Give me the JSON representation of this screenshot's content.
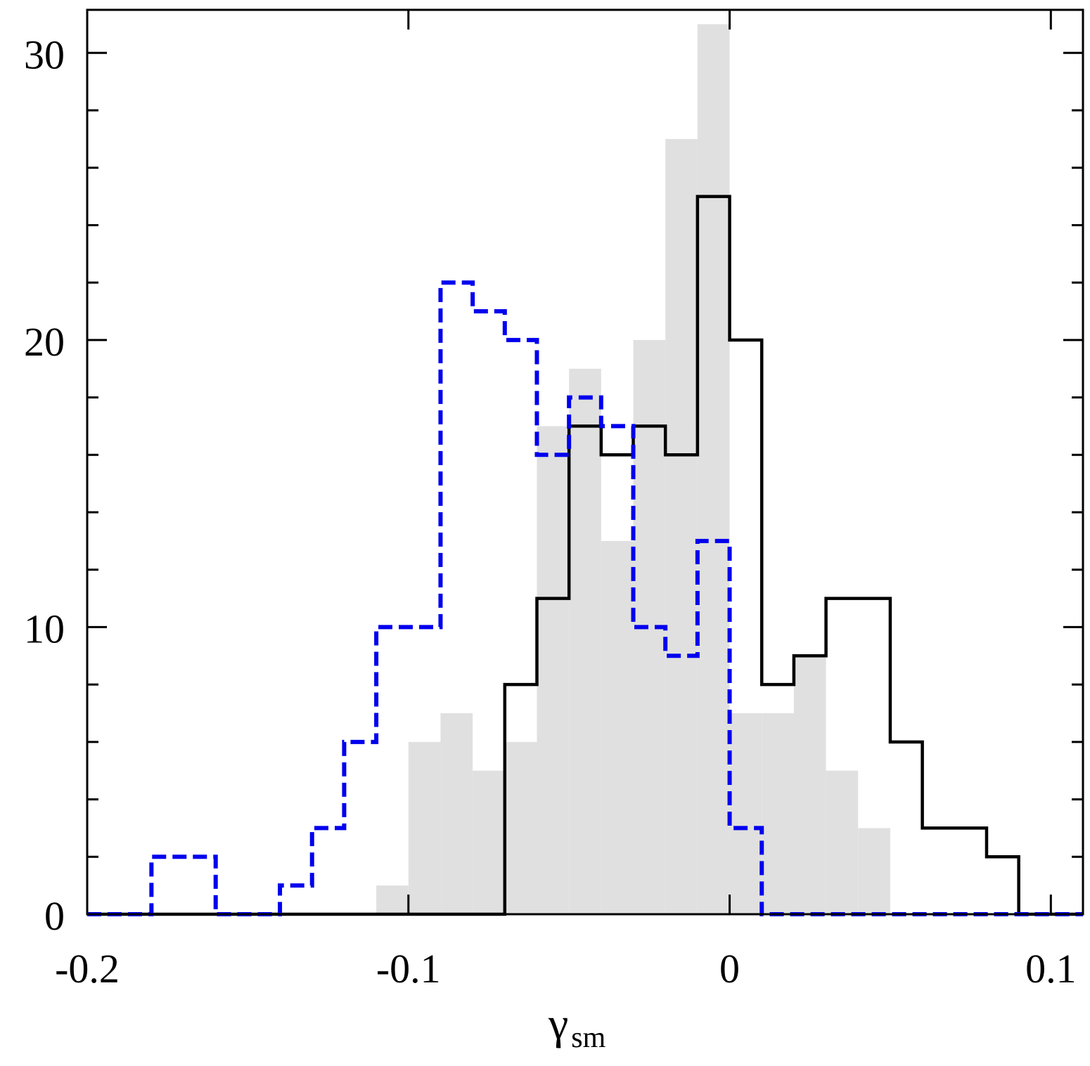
{
  "chart_data": {
    "type": "histogram",
    "xlabel": "γ",
    "xlabel_subscript": "sm",
    "ylabel": "",
    "xlim": [
      -0.2,
      0.11
    ],
    "ylim": [
      0,
      31.5
    ],
    "x_ticks": [
      {
        "value": -0.2,
        "label": "-0.2"
      },
      {
        "value": -0.1,
        "label": "-0.1"
      },
      {
        "value": 0,
        "label": "0"
      },
      {
        "value": 0.1,
        "label": "0.1"
      }
    ],
    "y_ticks": [
      {
        "value": 0,
        "label": "0"
      },
      {
        "value": 10,
        "label": "10"
      },
      {
        "value": 20,
        "label": "20"
      },
      {
        "value": 30,
        "label": "30"
      }
    ],
    "grid": false,
    "legend": "none",
    "series": [
      {
        "style": "filled",
        "color": "#e0e0e0",
        "bins": [
          {
            "x0": -0.11,
            "x1": -0.1,
            "y": 1
          },
          {
            "x0": -0.1,
            "x1": -0.09,
            "y": 6
          },
          {
            "x0": -0.09,
            "x1": -0.08,
            "y": 7
          },
          {
            "x0": -0.08,
            "x1": -0.07,
            "y": 5
          },
          {
            "x0": -0.07,
            "x1": -0.06,
            "y": 6
          },
          {
            "x0": -0.06,
            "x1": -0.05,
            "y": 17
          },
          {
            "x0": -0.05,
            "x1": -0.04,
            "y": 19
          },
          {
            "x0": -0.04,
            "x1": -0.03,
            "y": 13
          },
          {
            "x0": -0.03,
            "x1": -0.02,
            "y": 20
          },
          {
            "x0": -0.02,
            "x1": -0.01,
            "y": 27
          },
          {
            "x0": -0.01,
            "x1": 0.0,
            "y": 31
          },
          {
            "x0": 0.0,
            "x1": 0.01,
            "y": 7
          },
          {
            "x0": 0.01,
            "x1": 0.02,
            "y": 7
          },
          {
            "x0": 0.02,
            "x1": 0.03,
            "y": 9
          },
          {
            "x0": 0.03,
            "x1": 0.04,
            "y": 5
          },
          {
            "x0": 0.04,
            "x1": 0.05,
            "y": 3
          }
        ]
      },
      {
        "style": "solid-step",
        "color": "#000000",
        "bins": [
          {
            "x0": -0.2,
            "x1": -0.07,
            "y": 0
          },
          {
            "x0": -0.07,
            "x1": -0.06,
            "y": 8
          },
          {
            "x0": -0.06,
            "x1": -0.05,
            "y": 11
          },
          {
            "x0": -0.05,
            "x1": -0.04,
            "y": 17
          },
          {
            "x0": -0.04,
            "x1": -0.03,
            "y": 16
          },
          {
            "x0": -0.03,
            "x1": -0.02,
            "y": 17
          },
          {
            "x0": -0.02,
            "x1": -0.01,
            "y": 16
          },
          {
            "x0": -0.01,
            "x1": 0.0,
            "y": 25
          },
          {
            "x0": 0.0,
            "x1": 0.01,
            "y": 20
          },
          {
            "x0": 0.01,
            "x1": 0.02,
            "y": 8
          },
          {
            "x0": 0.02,
            "x1": 0.03,
            "y": 9
          },
          {
            "x0": 0.03,
            "x1": 0.04,
            "y": 11
          },
          {
            "x0": 0.04,
            "x1": 0.05,
            "y": 11
          },
          {
            "x0": 0.05,
            "x1": 0.06,
            "y": 6
          },
          {
            "x0": 0.06,
            "x1": 0.07,
            "y": 3
          },
          {
            "x0": 0.07,
            "x1": 0.08,
            "y": 3
          },
          {
            "x0": 0.08,
            "x1": 0.09,
            "y": 2
          },
          {
            "x0": 0.09,
            "x1": 0.11,
            "y": 0
          }
        ]
      },
      {
        "style": "dashed-step",
        "color": "#0000ee",
        "bins": [
          {
            "x0": -0.2,
            "x1": -0.18,
            "y": 0
          },
          {
            "x0": -0.18,
            "x1": -0.17,
            "y": 2
          },
          {
            "x0": -0.17,
            "x1": -0.16,
            "y": 2
          },
          {
            "x0": -0.16,
            "x1": -0.14,
            "y": 0
          },
          {
            "x0": -0.14,
            "x1": -0.13,
            "y": 1
          },
          {
            "x0": -0.13,
            "x1": -0.12,
            "y": 3
          },
          {
            "x0": -0.12,
            "x1": -0.11,
            "y": 6
          },
          {
            "x0": -0.11,
            "x1": -0.1,
            "y": 10
          },
          {
            "x0": -0.1,
            "x1": -0.09,
            "y": 10
          },
          {
            "x0": -0.09,
            "x1": -0.08,
            "y": 22
          },
          {
            "x0": -0.08,
            "x1": -0.07,
            "y": 21
          },
          {
            "x0": -0.07,
            "x1": -0.06,
            "y": 20
          },
          {
            "x0": -0.06,
            "x1": -0.05,
            "y": 16
          },
          {
            "x0": -0.05,
            "x1": -0.04,
            "y": 18
          },
          {
            "x0": -0.04,
            "x1": -0.03,
            "y": 17
          },
          {
            "x0": -0.03,
            "x1": -0.02,
            "y": 10
          },
          {
            "x0": -0.02,
            "x1": -0.01,
            "y": 9
          },
          {
            "x0": -0.01,
            "x1": 0.0,
            "y": 13
          },
          {
            "x0": 0.0,
            "x1": 0.01,
            "y": 3
          },
          {
            "x0": 0.01,
            "x1": 0.11,
            "y": 0
          }
        ]
      }
    ]
  }
}
